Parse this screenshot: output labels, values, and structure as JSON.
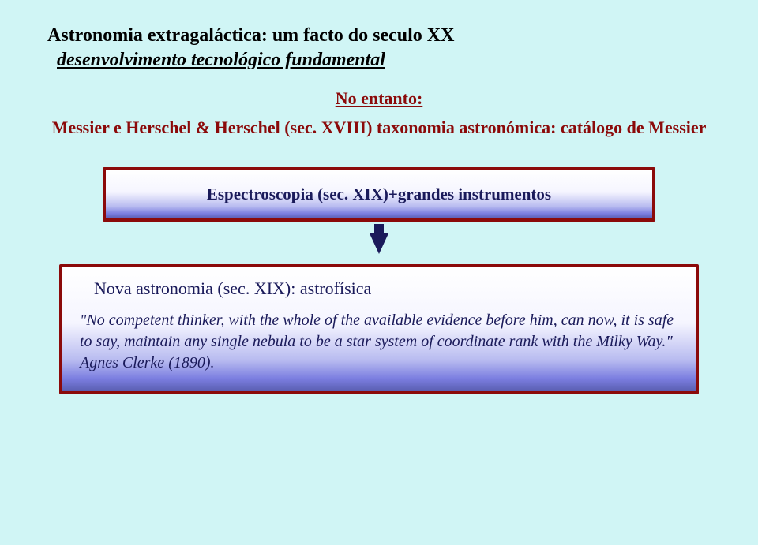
{
  "title_line1": "Astronomia extragaláctica: um facto do seculo XX",
  "title_line2": "desenvolvimento tecnológico fundamental",
  "sub1": "No entanto:",
  "sub2": "Messier e Herschel & Herschel (sec. XVIII) taxonomia astronómica: catálogo de Messier",
  "box1_text": "Espectroscopia (sec. XIX)+grandes instrumentos",
  "box2_title": "Nova astronomia (sec. XIX): astrofísica",
  "box2_quote": "\"No competent thinker, with the whole of the available evidence before him, can now, it is safe to say, maintain any single nebula to be a star system of coordinate rank with the Milky Way.\" Agnes Clerke (1890).",
  "colors": {
    "background": "#d0f5f5",
    "title_color": "#000000",
    "accent_red": "#8b0a0a",
    "box_border": "#8b0a0a",
    "box_text": "#1a1a5a",
    "gradient_top": "#ffffff",
    "gradient_bottom": "#5a5eb0",
    "arrow": "#1a1a5a"
  },
  "fonts": {
    "family": "Georgia, Times New Roman, serif",
    "title_size": 24,
    "sub_size": 22,
    "box_size": 21,
    "quote_size": 20
  }
}
